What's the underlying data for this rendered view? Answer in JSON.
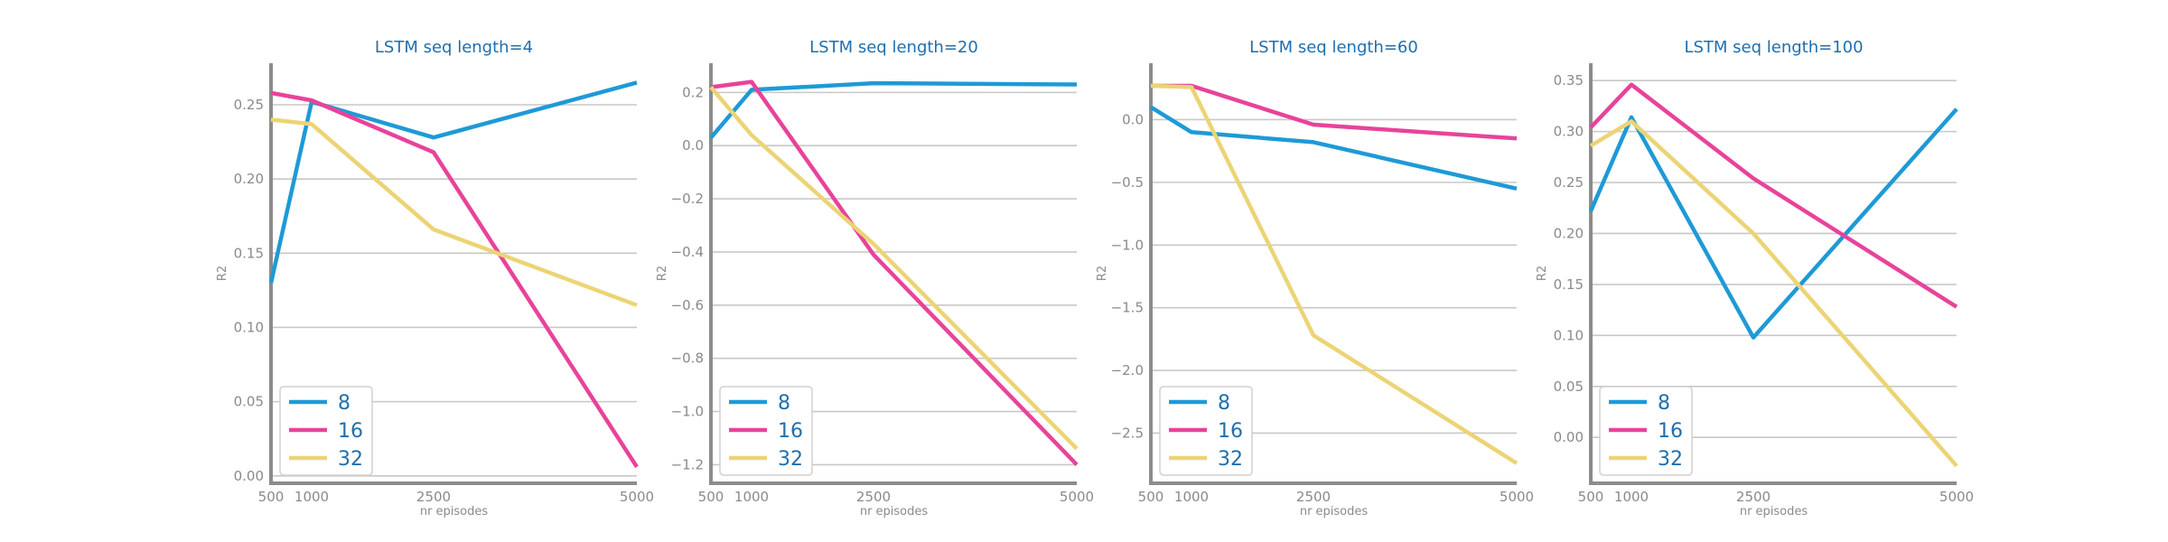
{
  "colors": {
    "8": "#1e9ad6",
    "16": "#e8439a",
    "32": "#ecd475"
  },
  "chart_data": [
    {
      "type": "line",
      "title": "LSTM seq length=4",
      "xlabel": "nr episodes",
      "ylabel": "R2",
      "x": [
        500,
        1000,
        2500,
        5000
      ],
      "xticks": [
        "500",
        "1000",
        "2500",
        "5000"
      ],
      "yticks": [
        0.0,
        0.05,
        0.1,
        0.15,
        0.2,
        0.25
      ],
      "ytick_labels": [
        "0.00",
        "0.05",
        "0.10",
        "0.15",
        "0.20",
        "0.25"
      ],
      "ylim": [
        -0.005,
        0.278
      ],
      "grid": true,
      "legend": "lower-left",
      "series": [
        {
          "name": "8",
          "values": [
            0.13,
            0.252,
            0.228,
            0.265
          ]
        },
        {
          "name": "16",
          "values": [
            0.258,
            0.253,
            0.218,
            0.006
          ]
        },
        {
          "name": "32",
          "values": [
            0.24,
            0.237,
            0.166,
            0.115
          ]
        }
      ]
    },
    {
      "type": "line",
      "title": "LSTM seq length=20",
      "xlabel": "nr episodes",
      "ylabel": "R2",
      "x": [
        500,
        1000,
        2500,
        5000
      ],
      "xticks": [
        "500",
        "1000",
        "2500",
        "5000"
      ],
      "yticks": [
        -1.2,
        -1.0,
        -0.8,
        -0.6,
        -0.4,
        -0.2,
        0.0,
        0.2
      ],
      "ytick_labels": [
        "−1.2",
        "−1.0",
        "−0.8",
        "−0.6",
        "−0.4",
        "−0.2",
        "0.0",
        "0.2"
      ],
      "ylim": [
        -1.27,
        0.31
      ],
      "grid": true,
      "legend": "lower-left",
      "series": [
        {
          "name": "8",
          "values": [
            0.03,
            0.21,
            0.235,
            0.23
          ]
        },
        {
          "name": "16",
          "values": [
            0.22,
            0.24,
            -0.41,
            -1.2
          ]
        },
        {
          "name": "32",
          "values": [
            0.22,
            0.04,
            -0.37,
            -1.14
          ]
        }
      ]
    },
    {
      "type": "line",
      "title": "LSTM seq length=60",
      "xlabel": "nr episodes",
      "ylabel": "R2",
      "x": [
        500,
        1000,
        2500,
        5000
      ],
      "xticks": [
        "500",
        "1000",
        "2500",
        "5000"
      ],
      "yticks": [
        -2.5,
        -2.0,
        -1.5,
        -1.0,
        -0.5,
        0.0
      ],
      "ytick_labels": [
        "−2.5",
        "−2.0",
        "−1.5",
        "−1.0",
        "−0.5",
        "0.0"
      ],
      "ylim": [
        -2.9,
        0.45
      ],
      "grid": true,
      "legend": "lower-left",
      "series": [
        {
          "name": "8",
          "values": [
            0.1,
            -0.1,
            -0.18,
            -0.55
          ]
        },
        {
          "name": "16",
          "values": [
            0.27,
            0.27,
            -0.04,
            -0.15
          ]
        },
        {
          "name": "32",
          "values": [
            0.27,
            0.26,
            -1.72,
            -2.74
          ]
        }
      ]
    },
    {
      "type": "line",
      "title": "LSTM seq length=100",
      "xlabel": "nr episodes",
      "ylabel": "R2",
      "x": [
        500,
        1000,
        2500,
        5000
      ],
      "xticks": [
        "500",
        "1000",
        "2500",
        "5000"
      ],
      "yticks": [
        0.0,
        0.05,
        0.1,
        0.15,
        0.2,
        0.25,
        0.3,
        0.35
      ],
      "ytick_labels": [
        "0.00",
        "0.05",
        "0.10",
        "0.15",
        "0.20",
        "0.25",
        "0.30",
        "0.35"
      ],
      "ylim": [
        -0.045,
        0.367
      ],
      "grid": true,
      "legend": "lower-left",
      "series": [
        {
          "name": "8",
          "values": [
            0.222,
            0.314,
            0.098,
            0.322
          ]
        },
        {
          "name": "16",
          "values": [
            0.304,
            0.346,
            0.254,
            0.128
          ]
        },
        {
          "name": "32",
          "values": [
            0.286,
            0.31,
            0.2,
            -0.028
          ]
        }
      ]
    }
  ]
}
